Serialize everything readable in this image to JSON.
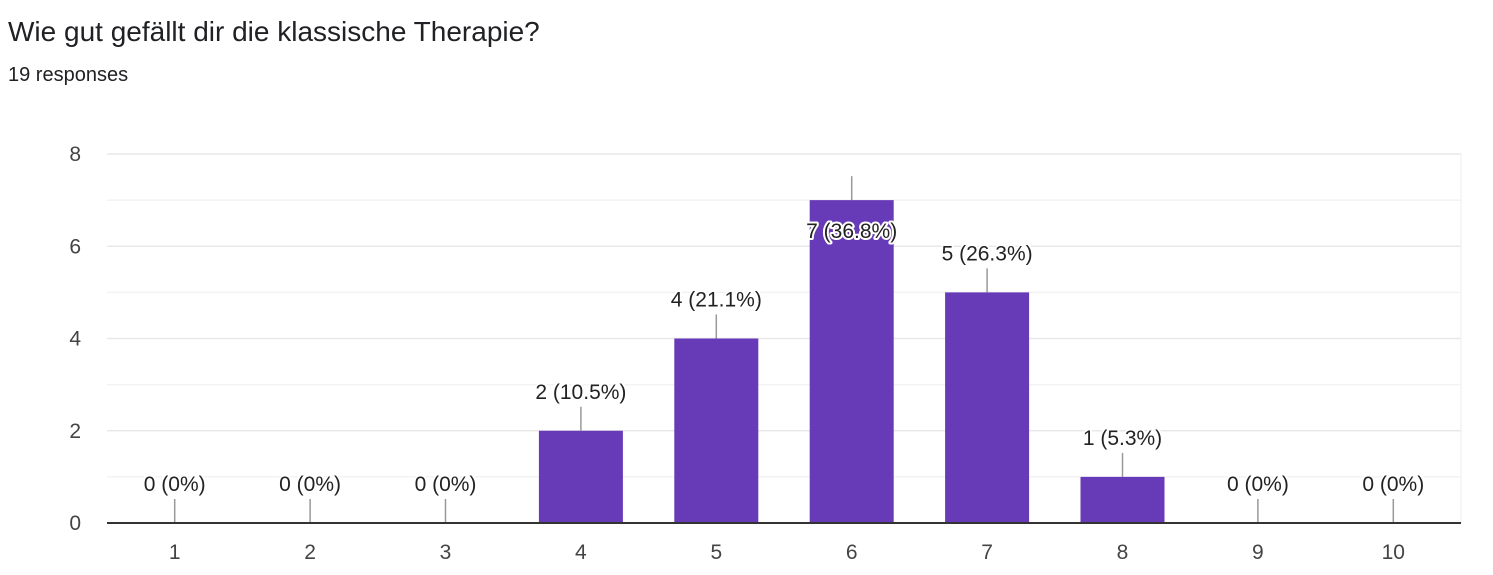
{
  "title": "Wie gut gefällt dir die klassische Therapie?",
  "subtitle": "19 responses",
  "colors": {
    "bar": "#673ab7",
    "grid_major": "#e8e8e8",
    "grid_minor": "#f3f3f3",
    "axis": "#333333",
    "leader": "#999999",
    "text": "#202124"
  },
  "chart_data": {
    "type": "bar",
    "categories": [
      "1",
      "2",
      "3",
      "4",
      "5",
      "6",
      "7",
      "8",
      "9",
      "10"
    ],
    "values": [
      0,
      0,
      0,
      2,
      4,
      7,
      5,
      1,
      0,
      0
    ],
    "data_labels": [
      "0 (0%)",
      "0 (0%)",
      "0 (0%)",
      "2 (10.5%)",
      "4 (21.1%)",
      "7 (36.8%)",
      "5 (26.3%)",
      "1 (5.3%)",
      "0 (0%)",
      "0 (0%)"
    ],
    "y_ticks": [
      "0",
      "2",
      "4",
      "6",
      "8"
    ],
    "ylim": [
      0,
      8
    ],
    "y_minor_step": 1,
    "grid": true,
    "legend": "none",
    "xlabel": "",
    "ylabel": ""
  }
}
